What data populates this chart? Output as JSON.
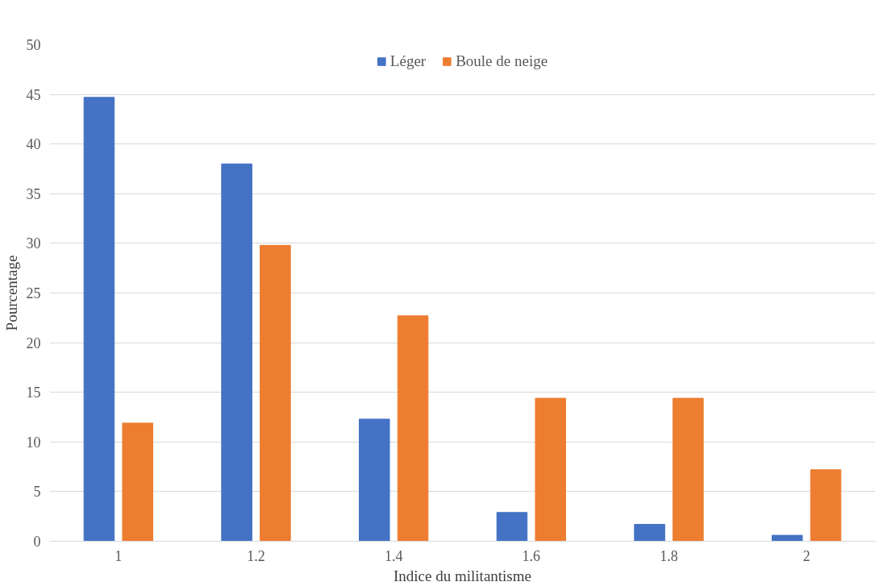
{
  "chart_data": {
    "type": "bar",
    "xlabel": "Indice du militantisme",
    "ylabel": "Pourcentage",
    "categories": [
      "1",
      "1.2",
      "1.4",
      "1.6",
      "1.8",
      "2"
    ],
    "series": [
      {
        "name": "Léger",
        "color": "#4472c4",
        "values": [
          44.7,
          38.0,
          12.3,
          2.9,
          1.7,
          0.6
        ]
      },
      {
        "name": "Boule de neige",
        "color": "#ed7d31",
        "values": [
          11.9,
          29.8,
          22.7,
          14.4,
          14.4,
          7.2
        ]
      }
    ],
    "ylim": [
      0,
      50
    ],
    "yticks": [
      0,
      5,
      10,
      15,
      20,
      25,
      30,
      35,
      40,
      45,
      50
    ],
    "grid": "y",
    "legend": "top"
  }
}
